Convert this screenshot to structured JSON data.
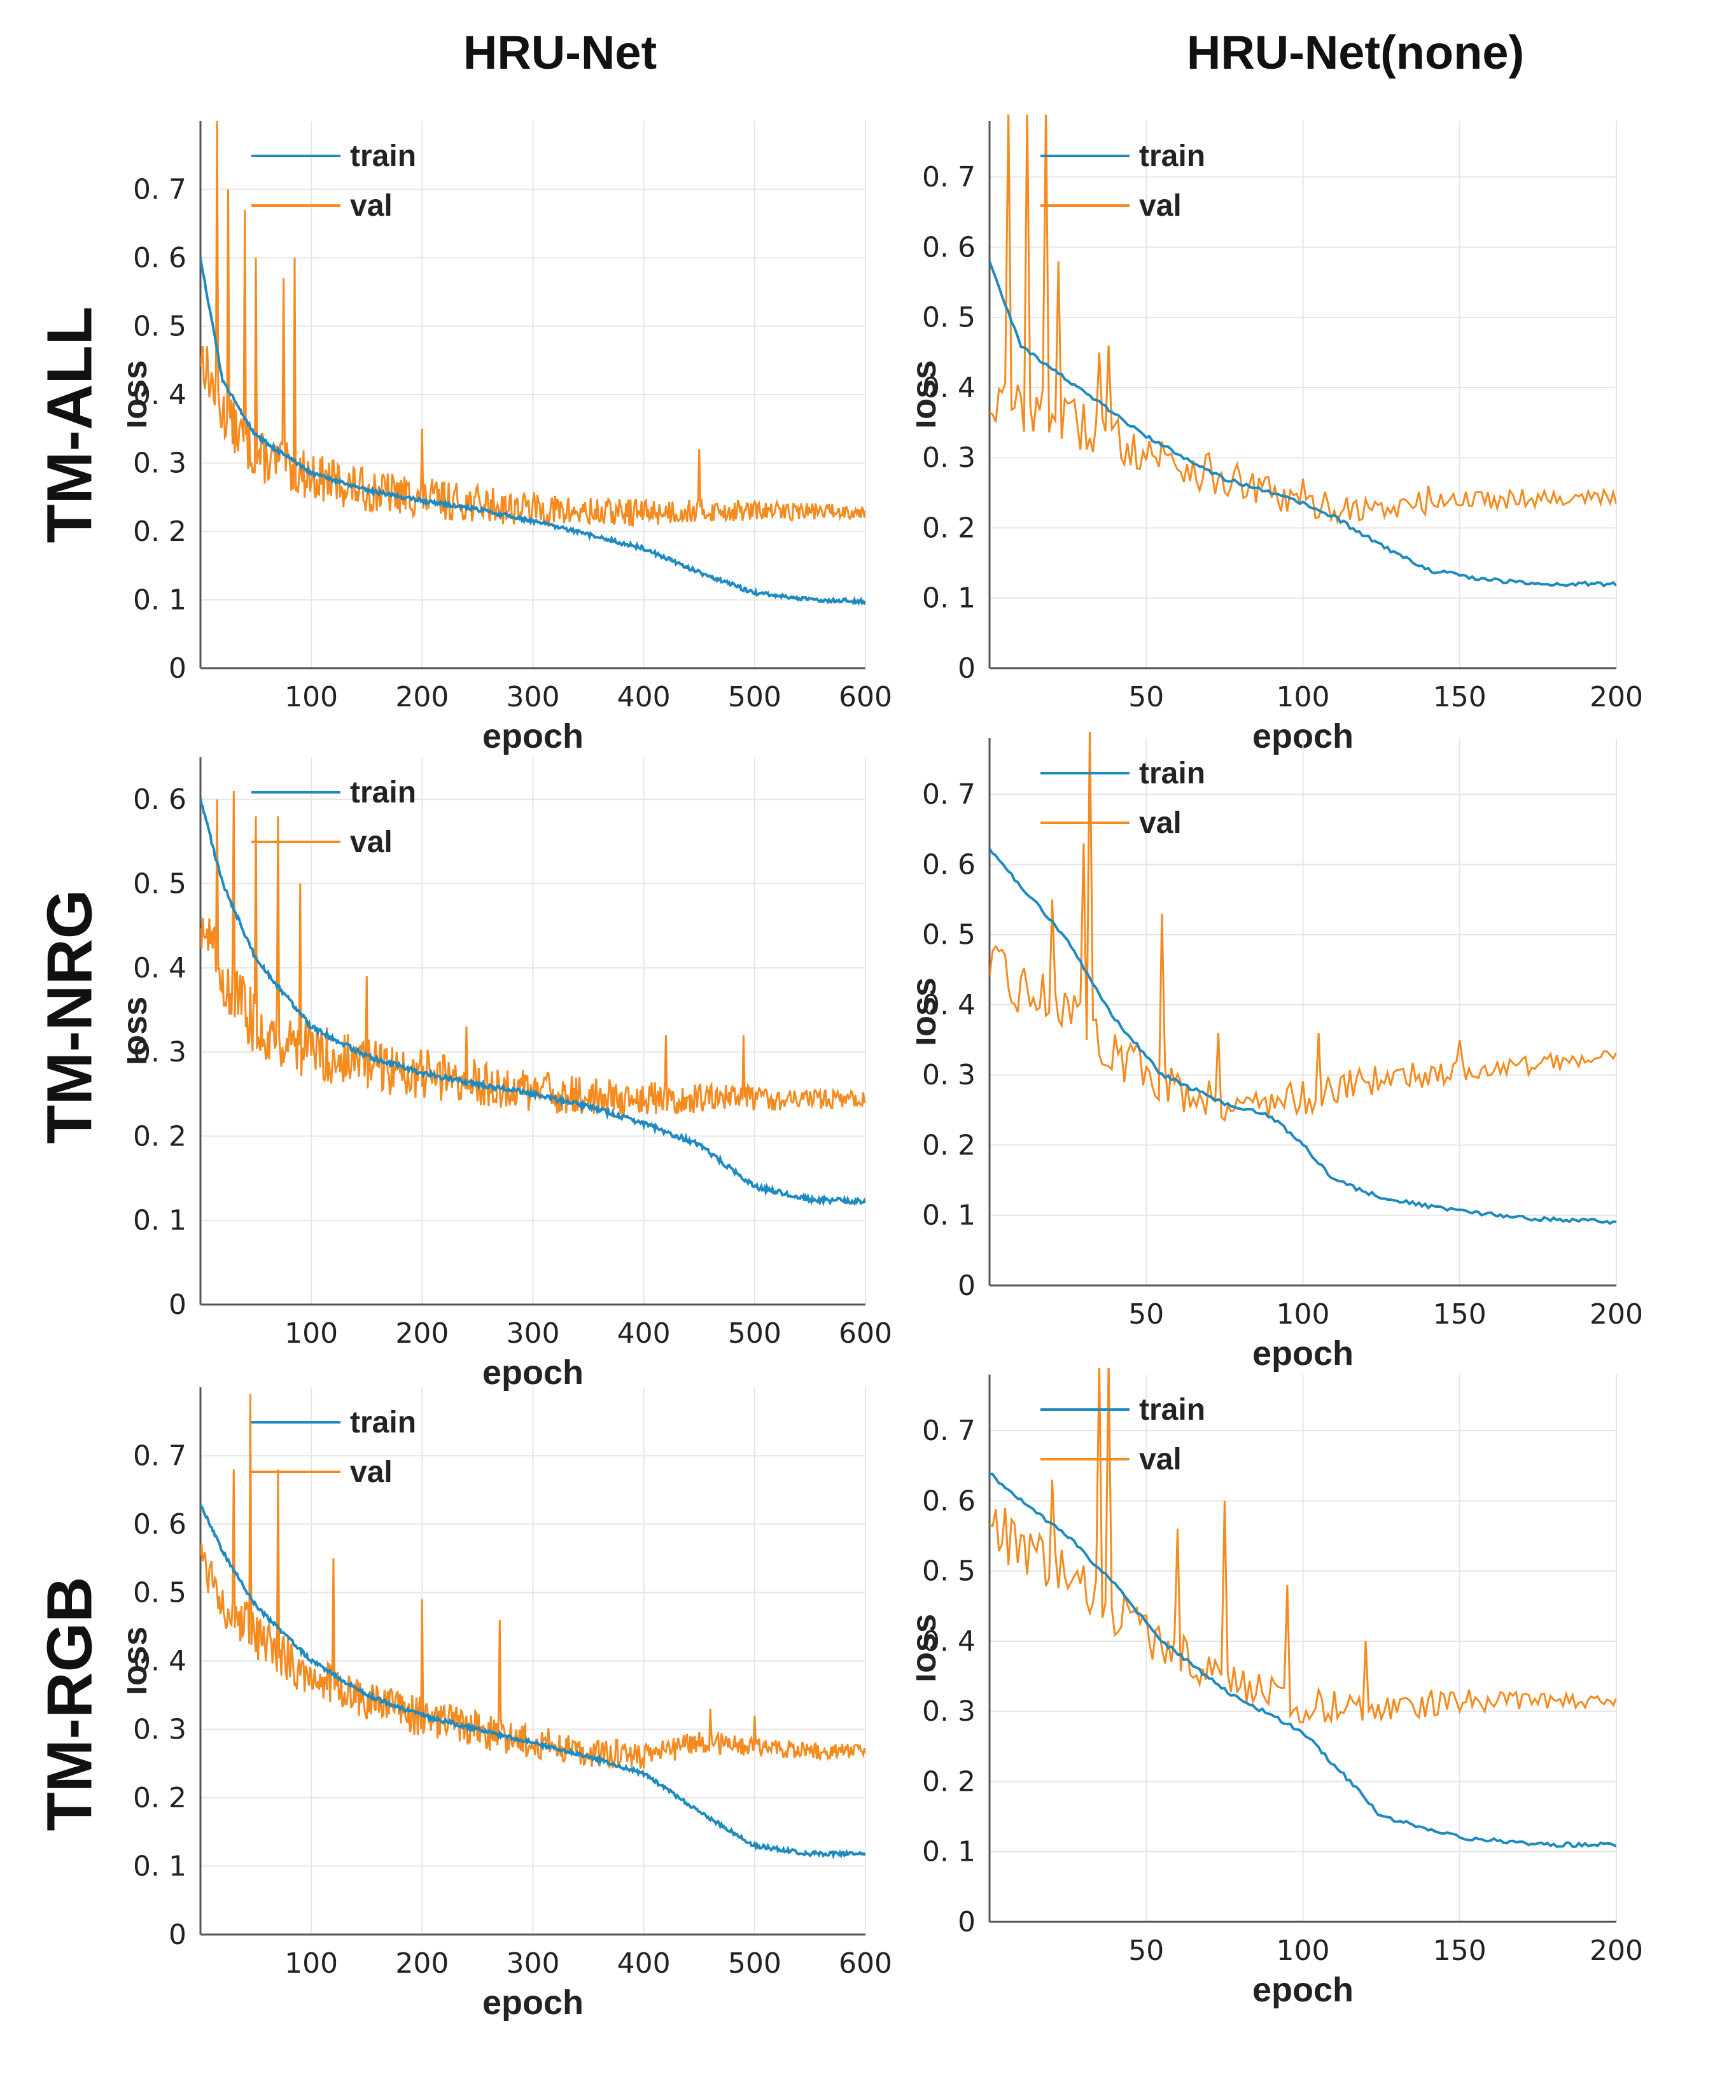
{
  "column_titles": [
    "HRU-Net",
    "HRU-Net(none)"
  ],
  "row_titles": [
    "TM-ALL",
    "TM-NRG",
    "TM-RGB"
  ],
  "colors": {
    "train": "#1f8ac0",
    "val": "#f58a1f",
    "grid": "#e6e6e6",
    "axis": "#555555"
  },
  "chart_data": [
    {
      "type": "line",
      "panel": "TM-ALL / HRU-Net",
      "xlabel": "epoch",
      "ylabel": "loss",
      "xlim": [
        0,
        600
      ],
      "ylim": [
        0,
        0.8
      ],
      "xticks": [
        100,
        200,
        300,
        400,
        500,
        600
      ],
      "yticks": [
        0,
        0.1,
        0.2,
        0.3,
        0.4,
        0.5,
        0.6,
        0.7
      ],
      "ytick_labels": [
        "0",
        "0. 1",
        "0. 2",
        "0. 3",
        "0. 4",
        "0. 5",
        "0. 6",
        "0. 7"
      ],
      "legend": [
        "train",
        "val"
      ],
      "series": [
        {
          "name": "train",
          "x": [
            0,
            20,
            50,
            100,
            150,
            200,
            250,
            300,
            350,
            400,
            450,
            500,
            550,
            600
          ],
          "y": [
            0.6,
            0.42,
            0.34,
            0.285,
            0.26,
            0.245,
            0.232,
            0.215,
            0.195,
            0.175,
            0.14,
            0.11,
            0.1,
            0.098
          ]
        },
        {
          "name": "val",
          "x": [
            0,
            20,
            50,
            100,
            150,
            200,
            250,
            300,
            350,
            400,
            450,
            500,
            550,
            600
          ],
          "y": [
            0.45,
            0.36,
            0.3,
            0.27,
            0.25,
            0.24,
            0.232,
            0.225,
            0.22,
            0.222,
            0.225,
            0.225,
            0.226,
            0.226
          ],
          "spikes": [
            [
              15,
              0.8
            ],
            [
              25,
              0.7
            ],
            [
              40,
              0.67
            ],
            [
              50,
              0.6
            ],
            [
              75,
              0.57
            ],
            [
              85,
              0.6
            ],
            [
              200,
              0.35
            ],
            [
              450,
              0.32
            ]
          ]
        }
      ]
    },
    {
      "type": "line",
      "panel": "TM-ALL / HRU-Net(none)",
      "xlabel": "epoch",
      "ylabel": "loss",
      "xlim": [
        0,
        200
      ],
      "ylim": [
        0,
        0.78
      ],
      "xticks": [
        50,
        100,
        150,
        200
      ],
      "yticks": [
        0,
        0.1,
        0.2,
        0.3,
        0.4,
        0.5,
        0.6,
        0.7
      ],
      "ytick_labels": [
        "0",
        "0. 1",
        "0. 2",
        "0. 3",
        "0. 4",
        "0. 5",
        "0. 6",
        "0. 7"
      ],
      "legend": [
        "train",
        "val"
      ],
      "series": [
        {
          "name": "train",
          "x": [
            0,
            10,
            25,
            50,
            75,
            100,
            110,
            125,
            140,
            160,
            180,
            200
          ],
          "y": [
            0.58,
            0.46,
            0.41,
            0.33,
            0.27,
            0.235,
            0.215,
            0.175,
            0.14,
            0.125,
            0.12,
            0.12
          ]
        },
        {
          "name": "val",
          "x": [
            0,
            10,
            25,
            50,
            75,
            100,
            125,
            150,
            175,
            200
          ],
          "y": [
            0.37,
            0.36,
            0.34,
            0.3,
            0.26,
            0.225,
            0.22,
            0.235,
            0.24,
            0.24
          ],
          "spikes": [
            [
              6,
              0.8
            ],
            [
              12,
              0.8
            ],
            [
              18,
              0.8
            ],
            [
              22,
              0.58
            ],
            [
              35,
              0.45
            ],
            [
              38,
              0.46
            ],
            [
              100,
              0.27
            ],
            [
              140,
              0.26
            ]
          ]
        }
      ]
    },
    {
      "type": "line",
      "panel": "TM-NRG / HRU-Net",
      "xlabel": "epoch",
      "ylabel": "loss",
      "xlim": [
        0,
        600
      ],
      "ylim": [
        0,
        0.65
      ],
      "xticks": [
        100,
        200,
        300,
        400,
        500,
        600
      ],
      "yticks": [
        0,
        0.1,
        0.2,
        0.3,
        0.4,
        0.5,
        0.6
      ],
      "ytick_labels": [
        "0",
        "0. 1",
        "0. 2",
        "0. 3",
        "0. 4",
        "0. 5",
        "0. 6"
      ],
      "legend": [
        "train",
        "val"
      ],
      "series": [
        {
          "name": "train",
          "x": [
            0,
            20,
            50,
            100,
            150,
            200,
            250,
            300,
            350,
            400,
            450,
            500,
            550,
            600
          ],
          "y": [
            0.6,
            0.5,
            0.41,
            0.33,
            0.295,
            0.275,
            0.262,
            0.25,
            0.235,
            0.215,
            0.19,
            0.14,
            0.125,
            0.122
          ]
        },
        {
          "name": "val",
          "x": [
            0,
            20,
            50,
            100,
            150,
            200,
            250,
            300,
            350,
            400,
            450,
            500,
            550,
            600
          ],
          "y": [
            0.45,
            0.38,
            0.32,
            0.29,
            0.275,
            0.265,
            0.255,
            0.245,
            0.24,
            0.24,
            0.24,
            0.24,
            0.24,
            0.24
          ],
          "spikes": [
            [
              15,
              0.6
            ],
            [
              30,
              0.61
            ],
            [
              50,
              0.58
            ],
            [
              70,
              0.58
            ],
            [
              90,
              0.5
            ],
            [
              150,
              0.39
            ],
            [
              240,
              0.33
            ],
            [
              420,
              0.32
            ],
            [
              490,
              0.32
            ]
          ]
        }
      ]
    },
    {
      "type": "line",
      "panel": "TM-NRG / HRU-Net(none)",
      "xlabel": "epoch",
      "ylabel": "loss",
      "xlim": [
        0,
        200
      ],
      "ylim": [
        0,
        0.78
      ],
      "xticks": [
        50,
        100,
        150,
        200
      ],
      "yticks": [
        0,
        0.1,
        0.2,
        0.3,
        0.4,
        0.5,
        0.6,
        0.7
      ],
      "ytick_labels": [
        "0",
        "0. 1",
        "0. 2",
        "0. 3",
        "0. 4",
        "0. 5",
        "0. 6",
        "0. 7"
      ],
      "legend": [
        "train",
        "val"
      ],
      "series": [
        {
          "name": "train",
          "x": [
            0,
            10,
            25,
            40,
            55,
            75,
            90,
            100,
            110,
            125,
            150,
            175,
            200
          ],
          "y": [
            0.62,
            0.57,
            0.49,
            0.38,
            0.3,
            0.26,
            0.24,
            0.2,
            0.15,
            0.125,
            0.105,
            0.095,
            0.09
          ]
        },
        {
          "name": "val",
          "x": [
            0,
            10,
            25,
            40,
            60,
            80,
            100,
            125,
            150,
            175,
            200
          ],
          "y": [
            0.44,
            0.41,
            0.39,
            0.32,
            0.27,
            0.25,
            0.26,
            0.29,
            0.3,
            0.31,
            0.33
          ],
          "spikes": [
            [
              20,
              0.55
            ],
            [
              30,
              0.63
            ],
            [
              32,
              0.8
            ],
            [
              55,
              0.53
            ],
            [
              73,
              0.36
            ],
            [
              105,
              0.36
            ],
            [
              150,
              0.35
            ]
          ]
        }
      ]
    },
    {
      "type": "line",
      "panel": "TM-RGB / HRU-Net",
      "xlabel": "epoch",
      "ylabel": "loss",
      "xlim": [
        0,
        600
      ],
      "ylim": [
        0,
        0.8
      ],
      "xticks": [
        100,
        200,
        300,
        400,
        500,
        600
      ],
      "yticks": [
        0,
        0.1,
        0.2,
        0.3,
        0.4,
        0.5,
        0.6,
        0.7
      ],
      "ytick_labels": [
        "0",
        "0. 1",
        "0. 2",
        "0. 3",
        "0. 4",
        "0. 5",
        "0. 6",
        "0. 7"
      ],
      "legend": [
        "train",
        "val"
      ],
      "series": [
        {
          "name": "train",
          "x": [
            0,
            20,
            50,
            100,
            150,
            200,
            250,
            300,
            350,
            400,
            450,
            500,
            550,
            600
          ],
          "y": [
            0.63,
            0.56,
            0.48,
            0.4,
            0.35,
            0.32,
            0.3,
            0.28,
            0.26,
            0.235,
            0.18,
            0.13,
            0.118,
            0.118
          ]
        },
        {
          "name": "val",
          "x": [
            0,
            20,
            50,
            100,
            150,
            200,
            250,
            300,
            350,
            400,
            450,
            500,
            550,
            600
          ],
          "y": [
            0.55,
            0.48,
            0.42,
            0.37,
            0.33,
            0.31,
            0.29,
            0.275,
            0.26,
            0.255,
            0.275,
            0.27,
            0.265,
            0.265
          ],
          "spikes": [
            [
              30,
              0.68
            ],
            [
              45,
              0.79
            ],
            [
              70,
              0.68
            ],
            [
              120,
              0.55
            ],
            [
              200,
              0.49
            ],
            [
              270,
              0.46
            ],
            [
              460,
              0.33
            ],
            [
              500,
              0.32
            ]
          ]
        }
      ]
    },
    {
      "type": "line",
      "panel": "TM-RGB / HRU-Net(none)",
      "xlabel": "epoch",
      "ylabel": "loss",
      "xlim": [
        0,
        200
      ],
      "ylim": [
        0,
        0.78
      ],
      "xticks": [
        50,
        100,
        150,
        200
      ],
      "yticks": [
        0,
        0.1,
        0.2,
        0.3,
        0.4,
        0.5,
        0.6,
        0.7
      ],
      "ytick_labels": [
        "0",
        "0. 1",
        "0. 2",
        "0. 3",
        "0. 4",
        "0. 5",
        "0. 6",
        "0. 7"
      ],
      "legend": [
        "train",
        "val"
      ],
      "series": [
        {
          "name": "train",
          "x": [
            0,
            10,
            25,
            40,
            55,
            75,
            100,
            115,
            125,
            150,
            175,
            200
          ],
          "y": [
            0.64,
            0.6,
            0.55,
            0.48,
            0.4,
            0.33,
            0.27,
            0.2,
            0.15,
            0.12,
            0.11,
            0.11
          ]
        },
        {
          "name": "val",
          "x": [
            0,
            10,
            25,
            50,
            75,
            100,
            125,
            150,
            175,
            200
          ],
          "y": [
            0.56,
            0.52,
            0.48,
            0.4,
            0.34,
            0.3,
            0.3,
            0.31,
            0.31,
            0.31
          ],
          "spikes": [
            [
              20,
              0.63
            ],
            [
              35,
              0.8
            ],
            [
              38,
              0.8
            ],
            [
              60,
              0.56
            ],
            [
              75,
              0.6
            ],
            [
              95,
              0.48
            ],
            [
              120,
              0.4
            ]
          ]
        }
      ]
    }
  ]
}
